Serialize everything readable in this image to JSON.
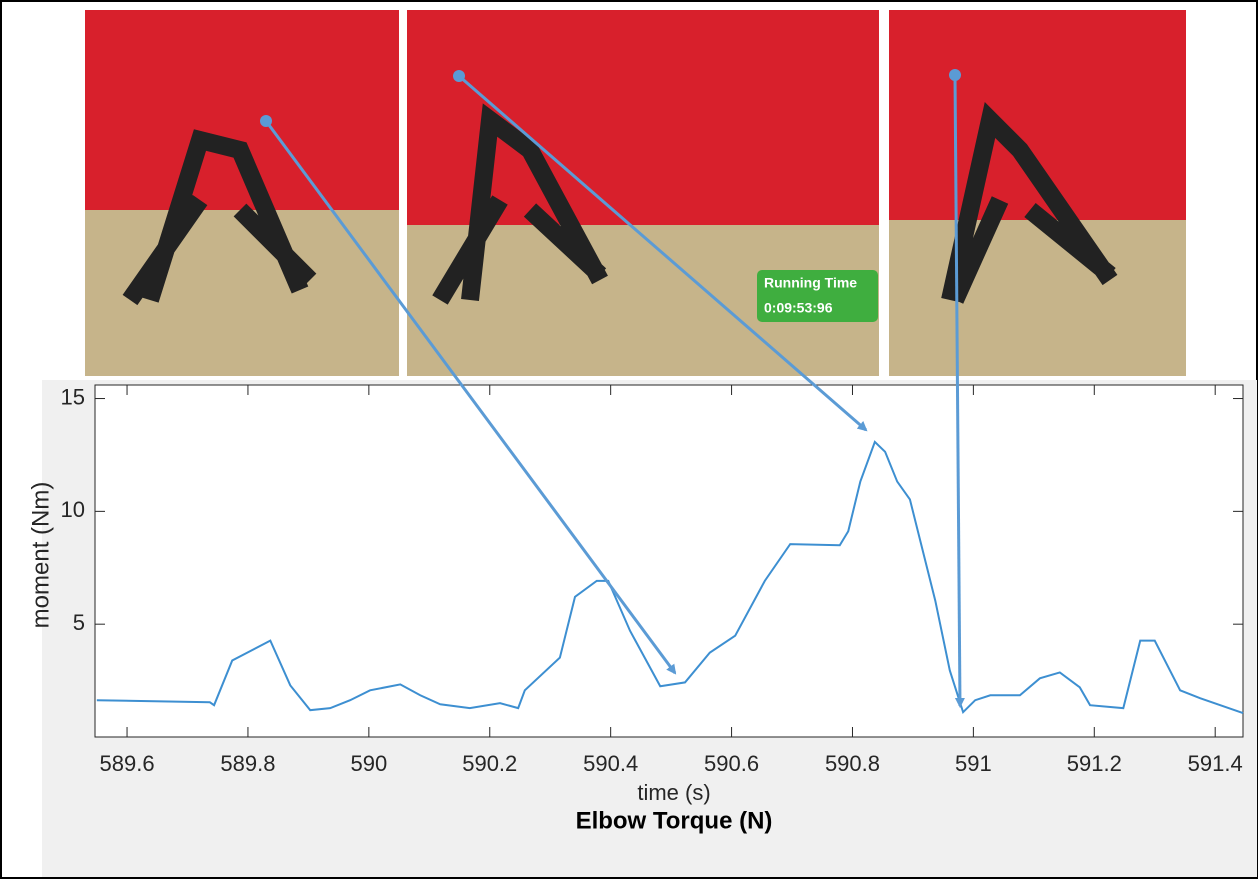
{
  "photo_overlay": {
    "label": "Running Time",
    "time": "0:09:53:96"
  },
  "chart_data": {
    "type": "line",
    "title": "Elbow Torque (N)",
    "xlabel": "time (s)",
    "ylabel": "moment (Nm)",
    "x": [
      589.55,
      589.737,
      589.744,
      589.774,
      589.837,
      589.87,
      589.903,
      589.936,
      589.969,
      590.002,
      590.052,
      590.085,
      590.118,
      590.167,
      590.217,
      590.247,
      590.258,
      590.316,
      590.341,
      590.377,
      590.396,
      590.432,
      590.482,
      590.523,
      590.564,
      590.606,
      590.655,
      590.697,
      590.779,
      590.793,
      590.813,
      590.837,
      590.854,
      590.874,
      590.895,
      590.937,
      590.961,
      590.983,
      591.003,
      591.028,
      591.077,
      591.11,
      591.143,
      591.176,
      591.193,
      591.248,
      591.276,
      591.3,
      591.342,
      591.375,
      591.446
    ],
    "series": [
      {
        "color": "#3d8fd1",
        "values": [
          1.63,
          1.54,
          1.41,
          3.39,
          4.27,
          2.29,
          1.19,
          1.28,
          1.63,
          2.07,
          2.33,
          1.85,
          1.45,
          1.28,
          1.5,
          1.28,
          2.07,
          3.52,
          6.21,
          6.92,
          6.92,
          4.71,
          2.25,
          2.42,
          3.74,
          4.49,
          6.92,
          8.55,
          8.5,
          9.12,
          11.32,
          13.08,
          12.64,
          11.32,
          10.53,
          6.04,
          2.95,
          1.1,
          1.63,
          1.85,
          1.85,
          2.6,
          2.86,
          2.2,
          1.41,
          1.28,
          4.27,
          4.27,
          2.07,
          1.72,
          1.06
        ]
      }
    ],
    "xlim": [
      589.547,
      591.446
    ],
    "ylim": [
      0,
      15.6
    ],
    "xticks": [
      589.6,
      589.8,
      590,
      590.2,
      590.4,
      590.6,
      590.8,
      591,
      591.2,
      591.4
    ],
    "yticks": [
      5,
      10,
      15
    ]
  }
}
